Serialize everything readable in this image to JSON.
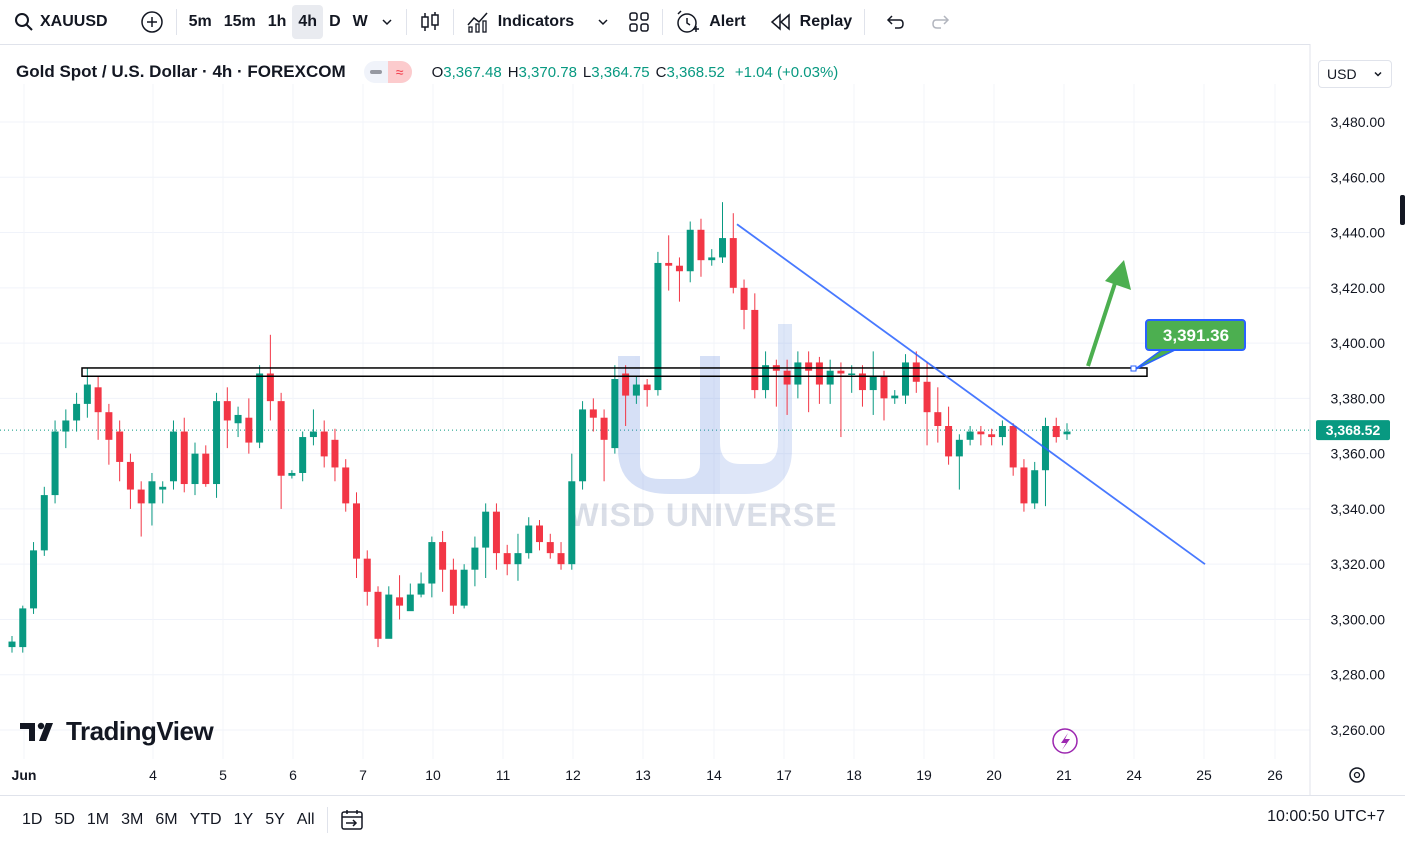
{
  "toolbar": {
    "symbol": "XAUUSD",
    "intervals": [
      "5m",
      "15m",
      "1h",
      "4h",
      "D",
      "W"
    ],
    "active_interval": "4h",
    "indicators_label": "Indicators",
    "alert_label": "Alert",
    "replay_label": "Replay"
  },
  "legend": {
    "title": "Gold Spot / U.S. Dollar · 4h · FOREXCOM",
    "o_key": "O",
    "o_val": "3,367.48",
    "h_key": "H",
    "h_val": "3,370.78",
    "l_key": "L",
    "l_val": "3,364.75",
    "c_key": "C",
    "c_val": "3,368.52",
    "change": "+1.04 (+0.03%)"
  },
  "currency": "USD",
  "watermark": "WISD UNIVERSE",
  "tv_logo": "TradingView",
  "chart_data": {
    "type": "candlestick",
    "y_axis_ticks": [
      "3,480.00",
      "3,460.00",
      "3,440.00",
      "3,420.00",
      "3,400.00",
      "3,380.00",
      "3,360.00",
      "3,340.00",
      "3,320.00",
      "3,300.00",
      "3,280.00",
      "3,260.00"
    ],
    "ylim": [
      3252,
      3494
    ],
    "x_axis_labels": [
      "Jun",
      "4",
      "5",
      "6",
      "7",
      "10",
      "11",
      "12",
      "13",
      "14",
      "17",
      "18",
      "19",
      "20",
      "21",
      "24",
      "25",
      "26"
    ],
    "last_price_label": "3,368.52",
    "last_price": 3368.52,
    "target_label": "3,391.36",
    "target_price": 3391.36,
    "resistance_zone": [
      3388,
      3391
    ],
    "trendline": {
      "start_price": 3443,
      "end_price": 3320
    },
    "candles": [
      [
        3290,
        3292,
        3288,
        3294
      ],
      [
        3290,
        3304,
        3288,
        3305
      ],
      [
        3304,
        3325,
        3302,
        3328
      ],
      [
        3325,
        3345,
        3323,
        3348
      ],
      [
        3345,
        3368,
        3342,
        3372
      ],
      [
        3368,
        3372,
        3362,
        3376
      ],
      [
        3372,
        3378,
        3368,
        3382
      ],
      [
        3378,
        3385,
        3373,
        3391
      ],
      [
        3384,
        3375,
        3365,
        3388
      ],
      [
        3375,
        3365,
        3356,
        3378
      ],
      [
        3368,
        3357,
        3350,
        3372
      ],
      [
        3357,
        3347,
        3340,
        3360
      ],
      [
        3347,
        3342,
        3330,
        3350
      ],
      [
        3342,
        3350,
        3334,
        3353
      ],
      [
        3347,
        3348,
        3342,
        3350
      ],
      [
        3350,
        3368,
        3347,
        3372
      ],
      [
        3368,
        3349,
        3346,
        3373
      ],
      [
        3349,
        3360,
        3345,
        3364
      ],
      [
        3360,
        3349,
        3348,
        3363
      ],
      [
        3349,
        3379,
        3344,
        3382
      ],
      [
        3379,
        3372,
        3362,
        3384
      ],
      [
        3371,
        3374,
        3366,
        3377
      ],
      [
        3373,
        3364,
        3360,
        3380
      ],
      [
        3364,
        3389,
        3362,
        3392
      ],
      [
        3389,
        3379,
        3372,
        3403
      ],
      [
        3379,
        3352,
        3340,
        3382
      ],
      [
        3352,
        3353,
        3351,
        3354
      ],
      [
        3353,
        3366,
        3350,
        3368
      ],
      [
        3366,
        3368,
        3363,
        3376
      ],
      [
        3368,
        3359,
        3355,
        3372
      ],
      [
        3365,
        3355,
        3350,
        3369
      ],
      [
        3355,
        3342,
        3339,
        3358
      ],
      [
        3342,
        3322,
        3315,
        3346
      ],
      [
        3322,
        3310,
        3305,
        3325
      ],
      [
        3310,
        3293,
        3290,
        3312
      ],
      [
        3293,
        3309,
        3295,
        3312
      ],
      [
        3308,
        3305,
        3300,
        3316
      ],
      [
        3303,
        3309,
        3304,
        3313
      ],
      [
        3309,
        3313,
        3308,
        3317
      ],
      [
        3313,
        3328,
        3308,
        3330
      ],
      [
        3328,
        3318,
        3310,
        3332
      ],
      [
        3318,
        3305,
        3302,
        3322
      ],
      [
        3305,
        3318,
        3304,
        3320
      ],
      [
        3318,
        3326,
        3312,
        3330
      ],
      [
        3326,
        3339,
        3315,
        3342
      ],
      [
        3339,
        3324,
        3318,
        3342
      ],
      [
        3324,
        3320,
        3316,
        3327
      ],
      [
        3320,
        3324,
        3314,
        3331
      ],
      [
        3324,
        3334,
        3322,
        3337
      ],
      [
        3334,
        3328,
        3325,
        3336
      ],
      [
        3328,
        3324,
        3322,
        3331
      ],
      [
        3324,
        3320,
        3318,
        3328
      ],
      [
        3320,
        3350,
        3318,
        3360
      ],
      [
        3350,
        3376,
        3347,
        3379
      ],
      [
        3376,
        3373,
        3368,
        3380
      ],
      [
        3373,
        3365,
        3350,
        3376
      ],
      [
        3362,
        3387,
        3360,
        3392
      ],
      [
        3389,
        3381,
        3370,
        3392
      ],
      [
        3381,
        3385,
        3378,
        3388
      ],
      [
        3385,
        3383,
        3377,
        3387
      ],
      [
        3383,
        3429,
        3381,
        3433
      ],
      [
        3429,
        3428,
        3419,
        3439
      ],
      [
        3428,
        3426,
        3415,
        3431
      ],
      [
        3426,
        3441,
        3422,
        3444
      ],
      [
        3441,
        3430,
        3424,
        3445
      ],
      [
        3430,
        3431,
        3428,
        3434
      ],
      [
        3431,
        3438,
        3429,
        3451
      ],
      [
        3438,
        3420,
        3418,
        3447
      ],
      [
        3420,
        3412,
        3405,
        3423
      ],
      [
        3412,
        3383,
        3380,
        3418
      ],
      [
        3383,
        3392,
        3380,
        3397
      ],
      [
        3392,
        3390,
        3377,
        3394
      ],
      [
        3390,
        3385,
        3374,
        3394
      ],
      [
        3385,
        3393,
        3380,
        3397
      ],
      [
        3393,
        3390,
        3375,
        3397
      ],
      [
        3393,
        3385,
        3378,
        3395
      ],
      [
        3385,
        3390,
        3378,
        3394
      ],
      [
        3390,
        3389,
        3366,
        3393
      ],
      [
        3389,
        3389,
        3382,
        3392
      ],
      [
        3389,
        3383,
        3377,
        3392
      ],
      [
        3383,
        3388,
        3374,
        3397
      ],
      [
        3388,
        3380,
        3372,
        3390
      ],
      [
        3380,
        3381,
        3378,
        3383
      ],
      [
        3381,
        3393,
        3378,
        3396
      ],
      [
        3393,
        3386,
        3382,
        3397
      ],
      [
        3386,
        3375,
        3363,
        3393
      ],
      [
        3375,
        3370,
        3364,
        3384
      ],
      [
        3370,
        3359,
        3356,
        3377
      ],
      [
        3359,
        3365,
        3347,
        3367
      ],
      [
        3365,
        3368,
        3363,
        3370
      ],
      [
        3368,
        3367,
        3363,
        3370
      ],
      [
        3367,
        3366,
        3363,
        3369
      ],
      [
        3366,
        3370,
        3363,
        3372
      ],
      [
        3370,
        3355,
        3352,
        3371
      ],
      [
        3355,
        3342,
        3339,
        3358
      ],
      [
        3342,
        3354,
        3340,
        3357
      ],
      [
        3354,
        3370,
        3341,
        3373
      ],
      [
        3370,
        3366,
        3364,
        3373
      ],
      [
        3367,
        3368,
        3365,
        3371
      ]
    ]
  }
}
